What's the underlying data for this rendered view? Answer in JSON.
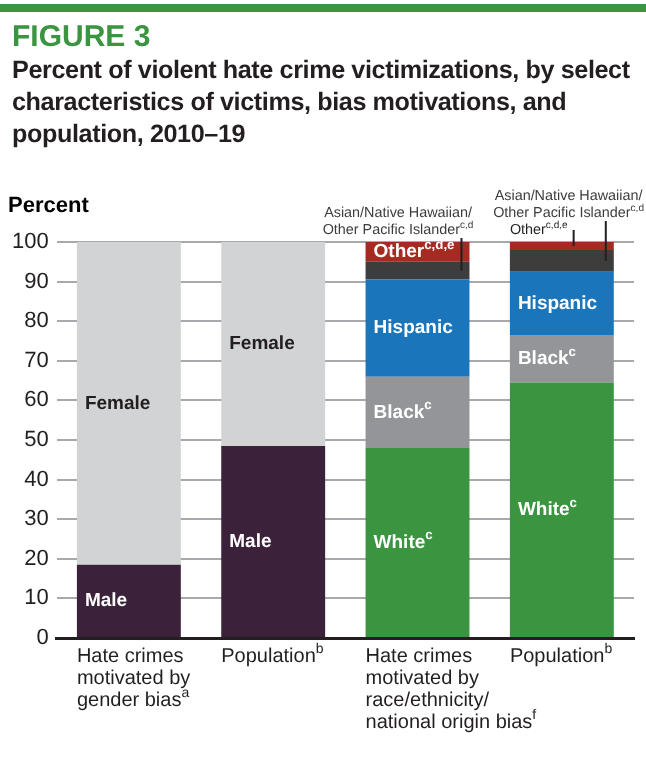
{
  "chart_data": {
    "type": "bar",
    "title": "FIGURE 3",
    "subtitle": "Percent of violent hate crime victimizations, by select characteristics of victims, bias motivations, and population, 2010–19",
    "ylabel": "Percent",
    "categories": [
      "Hate crimes motivated by gender bias$^{a}$",
      "Population$^{b}$",
      "Hate crimes motivated by race/ethnicity/ national origin bias$^{f}$",
      "Population$^{b}$"
    ],
    "stacked": true,
    "ylim": [
      0,
      100
    ],
    "yticks": [
      0,
      10,
      20,
      30,
      40,
      50,
      60,
      70,
      80,
      90,
      100
    ],
    "grid": "y",
    "legend": false,
    "series": [
      {
        "name": "Male",
        "color": "#3b2139",
        "values": [
          18.5,
          48.5,
          null,
          null
        ]
      },
      {
        "name": "Female",
        "color": "#d1d3d4",
        "values": [
          81.5,
          51.5,
          null,
          null
        ]
      },
      {
        "name": "White$^{c}$",
        "color": "#3a9440",
        "values": [
          null,
          null,
          48,
          64.5
        ]
      },
      {
        "name": "Black$^{c}$",
        "color": "#939598",
        "values": [
          null,
          null,
          18,
          12
        ]
      },
      {
        "name": "Hispanic",
        "color": "#1b75bb",
        "values": [
          null,
          null,
          24.5,
          16
        ]
      },
      {
        "name": "Asian/Native Hawaiian/ Other Pacific Islander$^{c,d}$",
        "color": "#3d3d3d",
        "values": [
          null,
          null,
          4.5,
          5.5
        ]
      },
      {
        "name": "Other$^{c,d,e}$",
        "color": "#a52a21",
        "values": [
          null,
          null,
          5,
          2
        ]
      }
    ]
  }
}
